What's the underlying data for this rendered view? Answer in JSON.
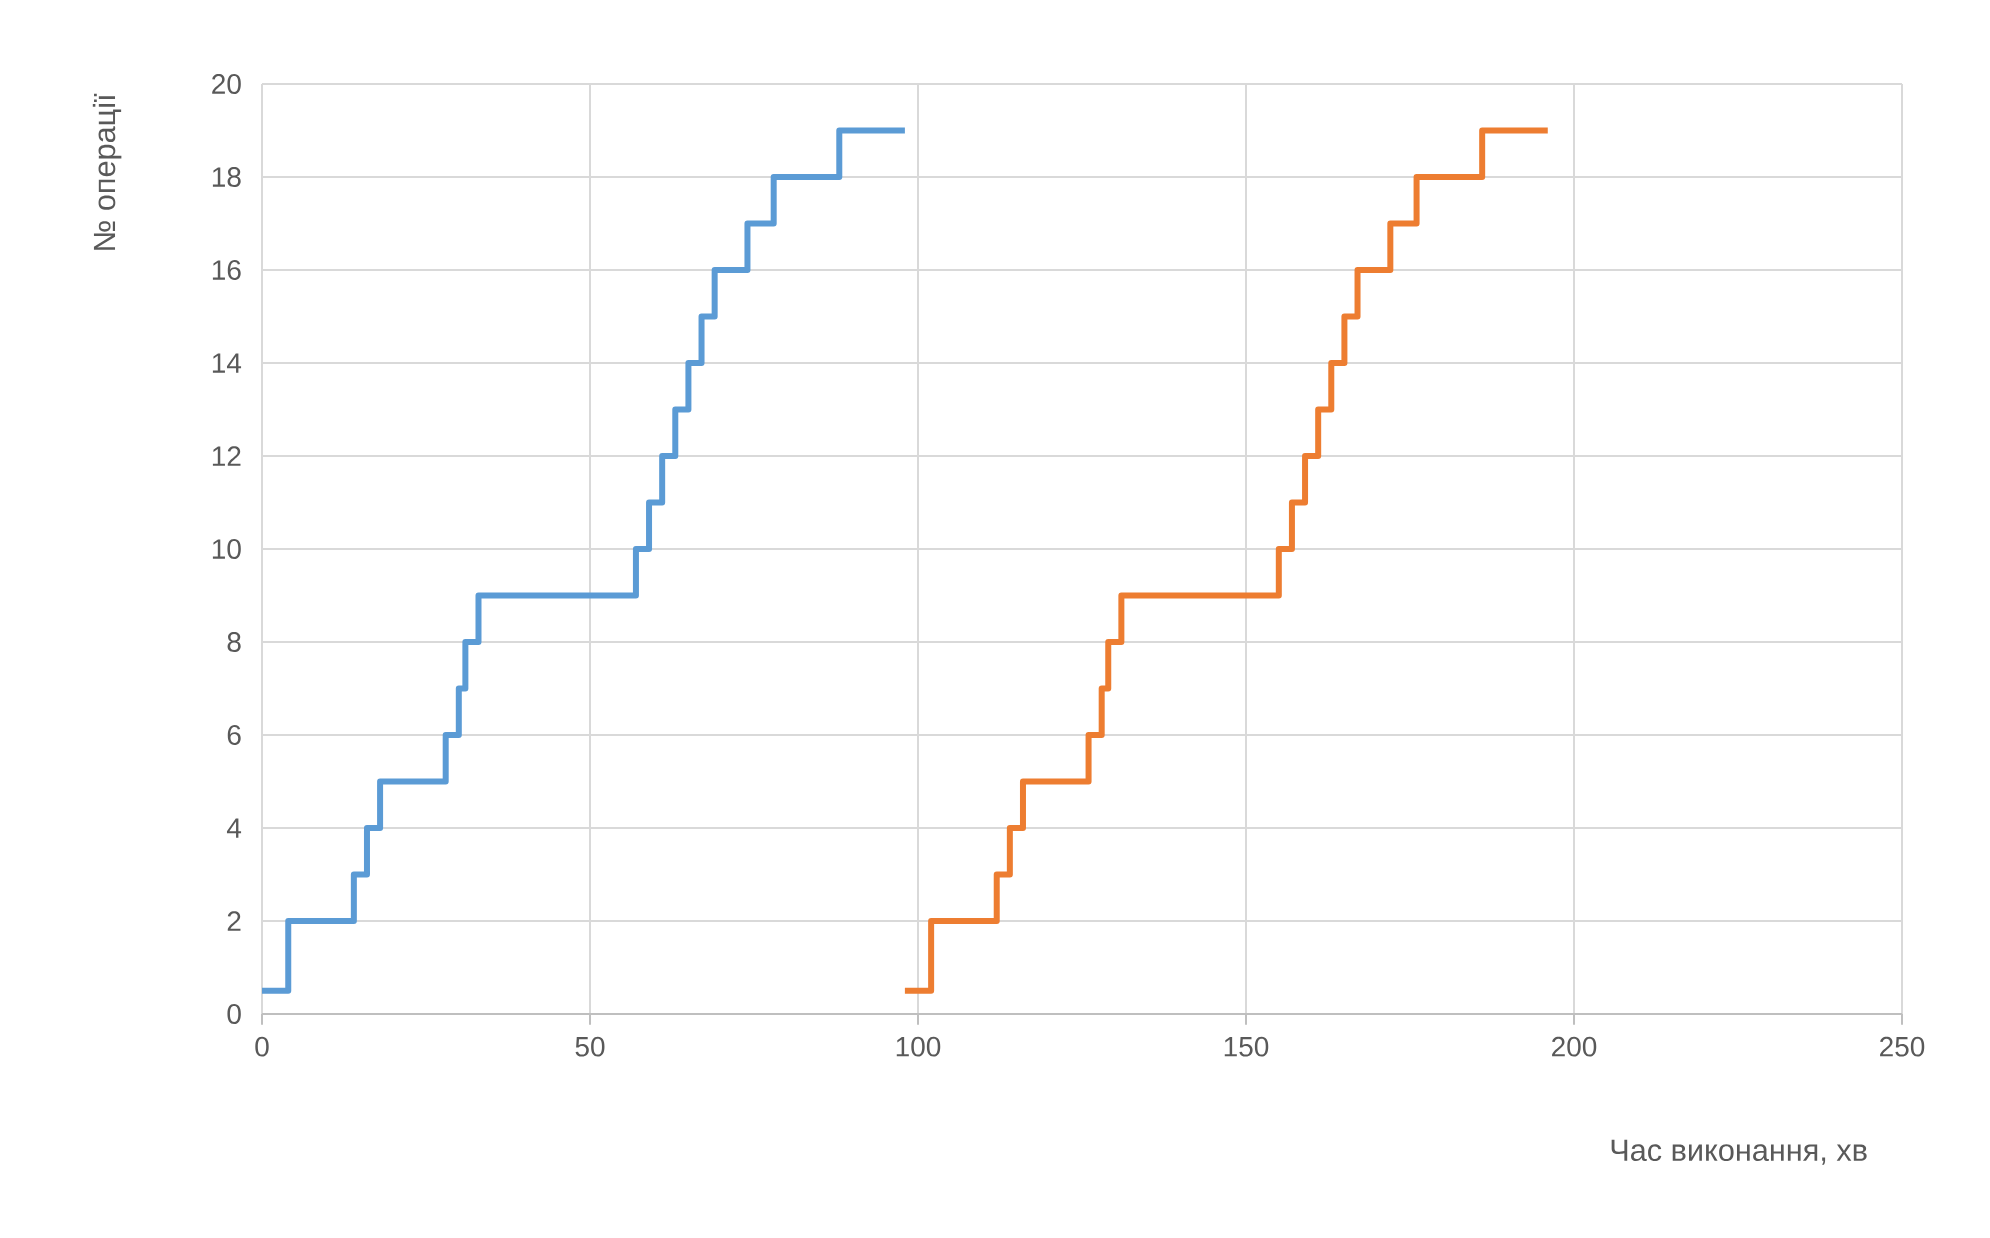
{
  "chart_data": {
    "type": "step",
    "xlabel": "Час виконання, хв",
    "ylabel": "№ операції",
    "xlim": [
      0,
      250
    ],
    "xticks": [
      0,
      50,
      100,
      150,
      200,
      250
    ],
    "ylim": [
      0,
      20
    ],
    "yticks": [
      0,
      2,
      4,
      6,
      8,
      10,
      12,
      14,
      16,
      18,
      20
    ],
    "grid": true,
    "series": [
      {
        "color": "#5b9bd5",
        "x": [
          0,
          4,
          14,
          16,
          18,
          28,
          30,
          31,
          33,
          57,
          59,
          61,
          63,
          65,
          67,
          69,
          74,
          78,
          88,
          98
        ],
        "values": [
          0.5,
          2,
          3,
          4,
          5,
          6,
          7,
          8,
          9,
          10,
          11,
          12,
          13,
          14,
          15,
          16,
          17,
          18,
          19,
          19
        ]
      },
      {
        "color": "#ed7d31",
        "x": [
          98,
          102,
          112,
          114,
          116,
          126,
          128,
          129,
          131,
          155,
          157,
          159,
          161,
          163,
          165,
          167,
          172,
          176,
          186,
          196
        ],
        "values": [
          0.5,
          2,
          3,
          4,
          5,
          6,
          7,
          8,
          9,
          10,
          11,
          12,
          13,
          14,
          15,
          16,
          17,
          18,
          19,
          19
        ]
      }
    ]
  }
}
